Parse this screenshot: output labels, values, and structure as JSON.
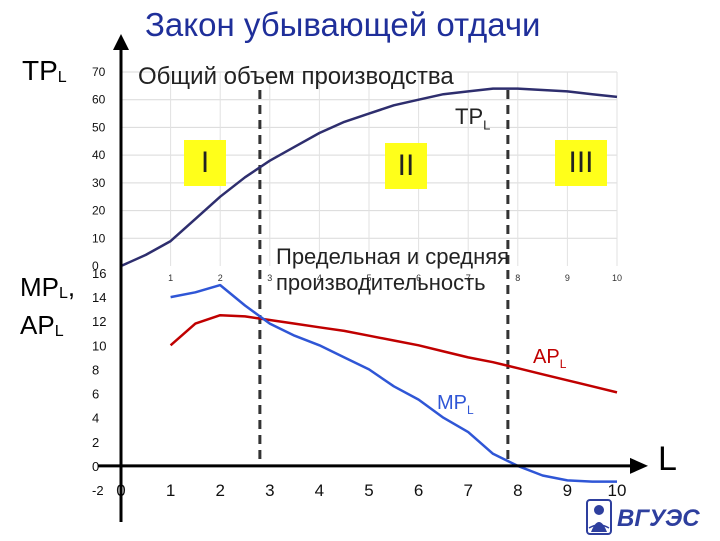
{
  "title": "Закон убывающей отдачи",
  "labels": {
    "tp_axis": "TP",
    "tp_axis_sub": "L",
    "mp_axis": "MP",
    "mp_axis_sub": "L",
    "mp_axis_comma": ",",
    "ap_axis": "AP",
    "ap_axis_sub": "L",
    "x_axis": "L",
    "top_caption": "Общий объем производства",
    "bottom_caption_line1": "Предельная и средняя",
    "bottom_caption_line2": "производительность",
    "tp_series": "TP",
    "tp_series_sub": "L",
    "ap_series": "AP",
    "ap_series_sub": "L",
    "mp_series": "MP",
    "mp_series_sub": "L",
    "logo_text": "ВГУЭС"
  },
  "zones": [
    {
      "label": "I"
    },
    {
      "label": "II"
    },
    {
      "label": "III"
    }
  ],
  "colors": {
    "title": "#1f2f9a",
    "tp_line": "#2e2e6e",
    "ap_line": "#c00000",
    "mp_line": "#2f56d6",
    "zone_fill": "#ffff1a",
    "dashed": "#333333"
  },
  "chart_data": [
    {
      "type": "line",
      "ylim": [
        0,
        70
      ],
      "xlim": [
        0,
        10
      ],
      "yticks": [
        "0",
        "10",
        "20",
        "30",
        "40",
        "50",
        "60",
        "70"
      ],
      "xticks": [
        "0",
        "1",
        "2",
        "3",
        "4",
        "5",
        "6",
        "7",
        "8",
        "9",
        "10"
      ],
      "grid": "horizontal",
      "series": [
        {
          "name": "TP",
          "x": [
            0,
            0.5,
            1,
            1.5,
            2,
            2.5,
            3,
            3.5,
            4,
            4.5,
            5,
            5.5,
            6,
            6.5,
            7,
            7.5,
            8,
            8.5,
            9,
            9.5,
            10
          ],
          "values": [
            0,
            4,
            9,
            17,
            25,
            32,
            38,
            43,
            48,
            52,
            55,
            58,
            60,
            62,
            63,
            64,
            64,
            63.5,
            63,
            62,
            61
          ]
        }
      ],
      "dividers_x": [
        2.8,
        7.8
      ]
    },
    {
      "type": "line",
      "ylim": [
        -2,
        16
      ],
      "xlim": [
        0,
        10
      ],
      "yticks": [
        "-2",
        "0",
        "2",
        "4",
        "6",
        "8",
        "10",
        "12",
        "14",
        "16"
      ],
      "xticks": [
        "0",
        "1",
        "2",
        "3",
        "4",
        "5",
        "6",
        "7",
        "8",
        "9",
        "10"
      ],
      "series": [
        {
          "name": "AP",
          "x": [
            1,
            1.5,
            2,
            2.5,
            3,
            3.5,
            4,
            4.5,
            5,
            5.5,
            6,
            6.5,
            7,
            7.5,
            8,
            8.5,
            9,
            9.5,
            10
          ],
          "values": [
            10,
            11.8,
            12.5,
            12.4,
            12.1,
            11.8,
            11.5,
            11.2,
            10.8,
            10.4,
            10,
            9.5,
            9,
            8.6,
            8.1,
            7.6,
            7.1,
            6.6,
            6.1
          ]
        },
        {
          "name": "MP",
          "x": [
            1,
            1.5,
            2,
            2.5,
            3,
            3.5,
            4,
            4.5,
            5,
            5.5,
            6,
            6.5,
            7,
            7.5,
            8,
            8.5,
            9,
            9.5,
            10
          ],
          "values": [
            14,
            14.4,
            15,
            13.3,
            11.8,
            10.8,
            10,
            9,
            8,
            6.6,
            5.5,
            4,
            2.8,
            1,
            0,
            -0.8,
            -1.2,
            -1.3,
            -1.3
          ]
        }
      ],
      "dividers_x": [
        2.8,
        7.8
      ]
    }
  ]
}
